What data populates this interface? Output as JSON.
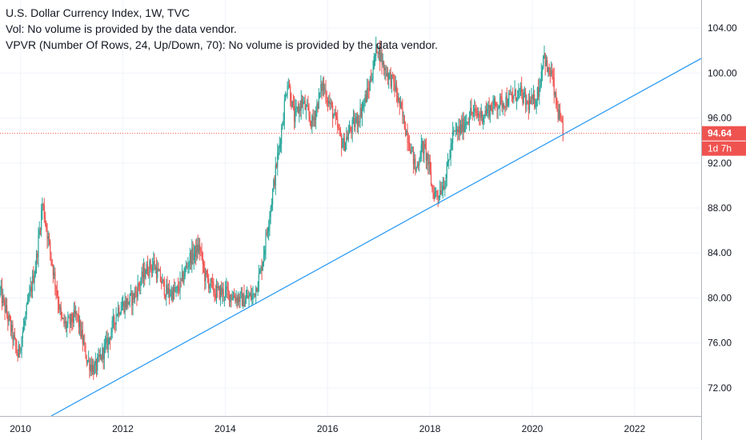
{
  "legend": {
    "title": "U.S. Dollar Currency Index, 1W, TVC",
    "vol": "Vol: No volume is provided by the data vendor.",
    "vpvr": "VPVR (Number Of Rows, 24, Up/Down, 70): No volume is provided by the data vendor."
  },
  "colors": {
    "up": "#26a69a",
    "down": "#ef5350",
    "trendline": "#2196f3",
    "price_line": "#ef5350",
    "badge": "#ef5350"
  },
  "price_axis": {
    "ticks": [
      "104.00",
      "100.00",
      "96.00",
      "92.00",
      "88.00",
      "84.00",
      "80.00",
      "76.00",
      "72.00"
    ]
  },
  "time_axis": {
    "ticks": [
      "2010",
      "2012",
      "2014",
      "2016",
      "2018",
      "2020",
      "2022"
    ]
  },
  "current_price": {
    "value": 94.64,
    "label": "94.64",
    "countdown": "1d 7h"
  },
  "chart_data": {
    "type": "line",
    "chart_style": "candlestick",
    "title": "U.S. Dollar Currency Index, 1W, TVC",
    "xlabel": "",
    "ylabel": "",
    "xlim": [
      2009.6,
      2023.3
    ],
    "ylim": [
      69.5,
      106.5
    ],
    "grid": true,
    "price_key_points": [
      [
        2009.6,
        80.6
      ],
      [
        2009.8,
        77.5
      ],
      [
        2009.95,
        74.8
      ],
      [
        2010.15,
        79.5
      ],
      [
        2010.3,
        83.0
      ],
      [
        2010.43,
        88.5
      ],
      [
        2010.55,
        85.0
      ],
      [
        2010.8,
        78.0
      ],
      [
        2010.9,
        77.5
      ],
      [
        2011.1,
        78.5
      ],
      [
        2011.3,
        74.5
      ],
      [
        2011.45,
        73.6
      ],
      [
        2011.7,
        76.0
      ],
      [
        2011.9,
        79.0
      ],
      [
        2012.2,
        80.0
      ],
      [
        2012.45,
        82.5
      ],
      [
        2012.6,
        83.0
      ],
      [
        2012.85,
        80.5
      ],
      [
        2013.05,
        80.5
      ],
      [
        2013.15,
        81.5
      ],
      [
        2013.3,
        83.5
      ],
      [
        2013.5,
        84.5
      ],
      [
        2013.6,
        82.0
      ],
      [
        2013.8,
        80.5
      ],
      [
        2014.0,
        80.5
      ],
      [
        2014.35,
        79.8
      ],
      [
        2014.55,
        80.2
      ],
      [
        2014.7,
        82.5
      ],
      [
        2014.9,
        88.5
      ],
      [
        2015.1,
        95.0
      ],
      [
        2015.22,
        99.5
      ],
      [
        2015.35,
        96.0
      ],
      [
        2015.5,
        97.5
      ],
      [
        2015.7,
        95.5
      ],
      [
        2015.9,
        99.0
      ],
      [
        2016.1,
        96.5
      ],
      [
        2016.3,
        93.5
      ],
      [
        2016.45,
        95.0
      ],
      [
        2016.6,
        96.0
      ],
      [
        2016.8,
        98.5
      ],
      [
        2016.97,
        102.5
      ],
      [
        2017.1,
        100.5
      ],
      [
        2017.3,
        99.0
      ],
      [
        2017.5,
        95.5
      ],
      [
        2017.65,
        93.0
      ],
      [
        2017.72,
        91.3
      ],
      [
        2017.85,
        93.5
      ],
      [
        2017.95,
        92.5
      ],
      [
        2018.05,
        89.5
      ],
      [
        2018.15,
        89.2
      ],
      [
        2018.3,
        90.5
      ],
      [
        2018.45,
        94.5
      ],
      [
        2018.6,
        95.0
      ],
      [
        2018.8,
        96.5
      ],
      [
        2019.0,
        96.2
      ],
      [
        2019.2,
        97.0
      ],
      [
        2019.45,
        97.5
      ],
      [
        2019.6,
        97.8
      ],
      [
        2019.75,
        98.3
      ],
      [
        2019.9,
        97.2
      ],
      [
        2020.05,
        97.5
      ],
      [
        2020.15,
        99.0
      ],
      [
        2020.22,
        102.0
      ],
      [
        2020.3,
        100.0
      ],
      [
        2020.38,
        100.0
      ],
      [
        2020.45,
        97.5
      ],
      [
        2020.55,
        95.5
      ],
      [
        2020.6,
        94.64
      ]
    ],
    "trendline": {
      "x": [
        2010.6,
        2023.3
      ],
      "y": [
        69.5,
        101.3
      ]
    },
    "current_price_line": 94.64
  }
}
